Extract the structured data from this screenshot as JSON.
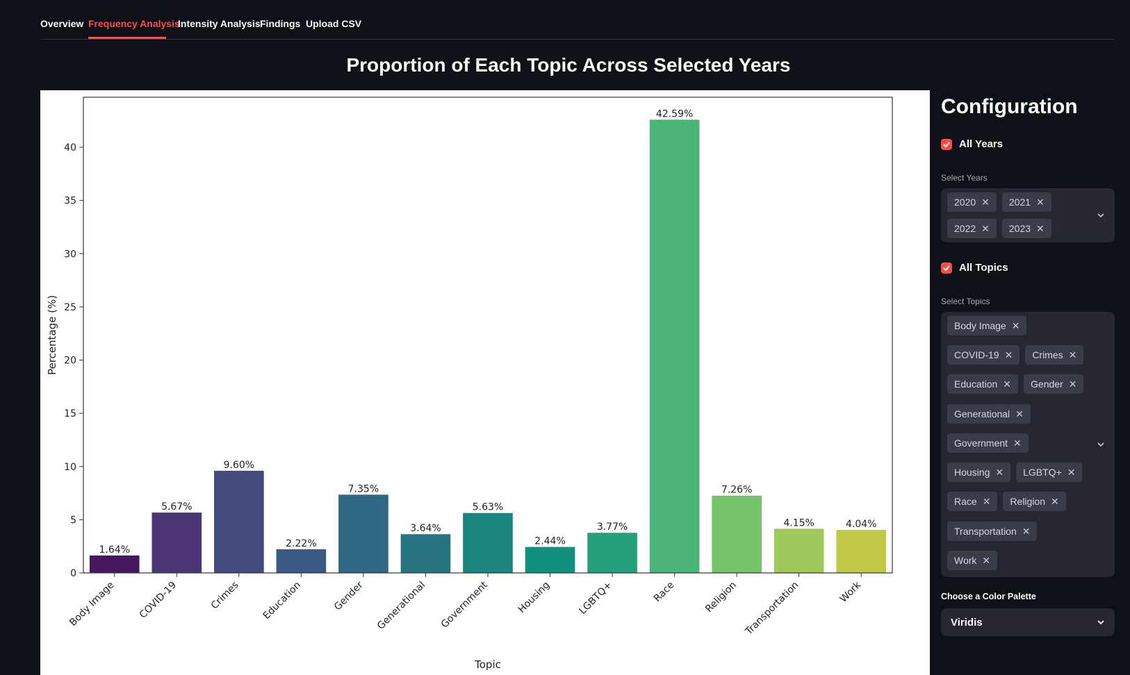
{
  "tabs": [
    {
      "label": "Overview",
      "active": false
    },
    {
      "label": "Frequency Analysis",
      "active": true
    },
    {
      "label": "Intensity Analysis",
      "active": false
    },
    {
      "label": "Findings",
      "active": false
    },
    {
      "label": "Upload CSV",
      "active": false
    }
  ],
  "main": {
    "title": "Proportion of Each Topic Across Selected Years"
  },
  "sidebar": {
    "title": "Configuration",
    "all_years_label": "All Years",
    "all_years_checked": true,
    "select_years_label": "Select Years",
    "years": [
      "2020",
      "2021",
      "2022",
      "2023"
    ],
    "all_topics_label": "All Topics",
    "all_topics_checked": true,
    "select_topics_label": "Select Topics",
    "topics": [
      "Body Image",
      "COVID-19",
      "Crimes",
      "Education",
      "Gender",
      "Generational",
      "Government",
      "Housing",
      "LGBTQ+",
      "Race",
      "Religion",
      "Transportation",
      "Work"
    ],
    "palette_label": "Choose a Color Palette",
    "palette_value": "Viridis"
  },
  "chart_data": {
    "type": "bar",
    "categories": [
      "Body Image",
      "COVID-19",
      "Crimes",
      "Education",
      "Gender",
      "Generational",
      "Government",
      "Housing",
      "LGBTQ+",
      "Race",
      "Religion",
      "Transportation",
      "Work"
    ],
    "values": [
      1.64,
      5.67,
      9.6,
      2.22,
      7.35,
      3.64,
      5.63,
      2.44,
      3.77,
      42.59,
      7.26,
      4.15,
      4.04
    ],
    "data_labels": [
      "1.64%",
      "5.67%",
      "9.60%",
      "2.22%",
      "7.35%",
      "3.64%",
      "5.63%",
      "2.44%",
      "3.77%",
      "42.59%",
      "7.26%",
      "4.15%",
      "4.04%"
    ],
    "colors": [
      "#45185f",
      "#4d3676",
      "#434a7d",
      "#3a5a84",
      "#306883",
      "#287481",
      "#1a847f",
      "#11917d",
      "#23a07b",
      "#4ab577",
      "#77c36b",
      "#9fca5b",
      "#c1c947"
    ],
    "xlabel": "Topic",
    "ylabel": "Percentage (%)",
    "yticks": [
      0,
      5,
      10,
      15,
      20,
      25,
      30,
      35,
      40
    ],
    "ylim": [
      0,
      44.7
    ],
    "grid": false
  }
}
